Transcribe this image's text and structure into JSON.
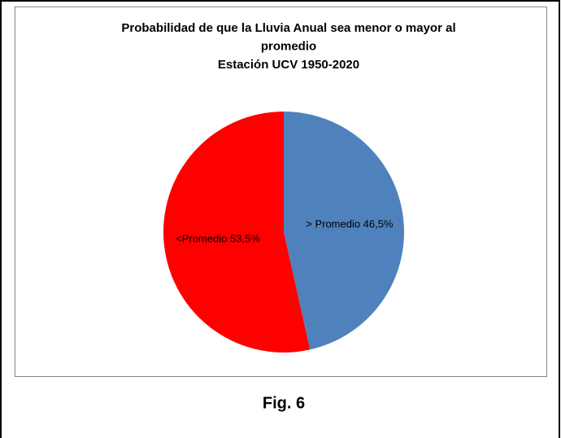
{
  "chart_data": {
    "type": "pie",
    "title": [
      "Probabilidad de que la Lluvia Anual sea menor o mayor al",
      "promedio",
      "Estación UCV 1950-2020"
    ],
    "values": [
      46.5,
      53.5
    ],
    "value_labels": [
      "> Promedio 46,5%",
      "<Promedio 53,5%"
    ],
    "colors": [
      "#4f81bd",
      "#ff0000"
    ]
  },
  "caption": "Fig. 6"
}
